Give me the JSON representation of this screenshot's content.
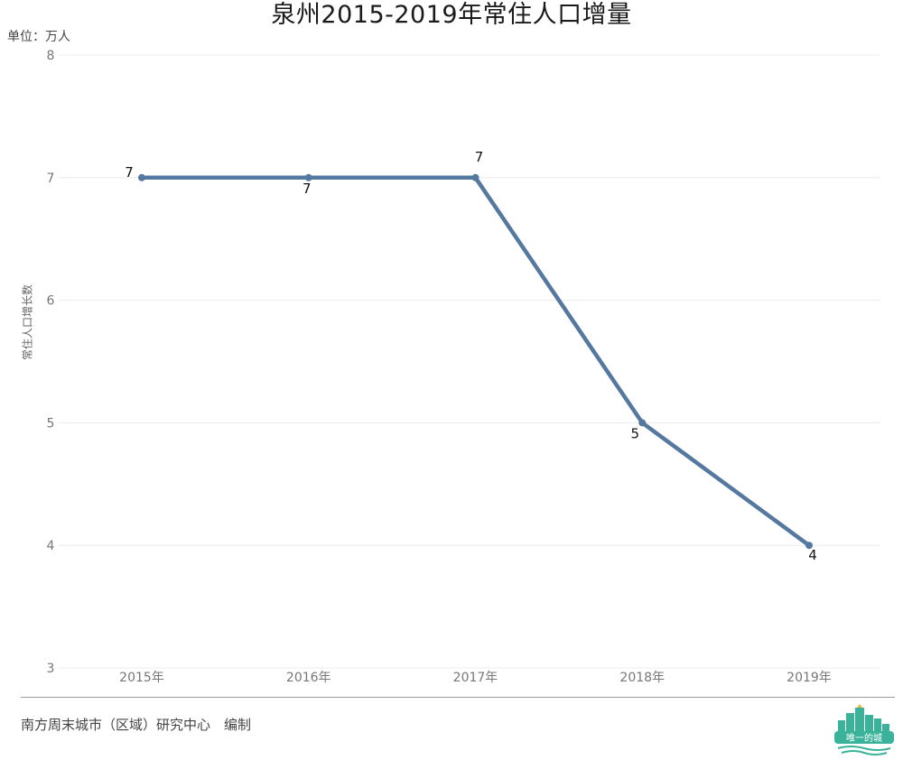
{
  "chart_data": {
    "type": "line",
    "title": "泉州2015-2019年常住人口增量",
    "unit_note": "单位：万人",
    "ylabel": "常住人口增长数",
    "categories": [
      "2015年",
      "2016年",
      "2017年",
      "2018年",
      "2019年"
    ],
    "series": [
      {
        "values": [
          7,
          7,
          7,
          5,
          4
        ],
        "color": "#5478a0"
      }
    ],
    "ylim": [
      3,
      8
    ],
    "yticks": [
      3,
      4,
      5,
      6,
      7,
      8
    ],
    "grid": true,
    "data_labels": true
  },
  "footer": {
    "source": "南方周末城市（区域）研究中心　编制",
    "logo_text": "唯一的城"
  },
  "colors": {
    "line": "#5478a0",
    "grid": "#ececec",
    "logo": "#3bb39b"
  }
}
